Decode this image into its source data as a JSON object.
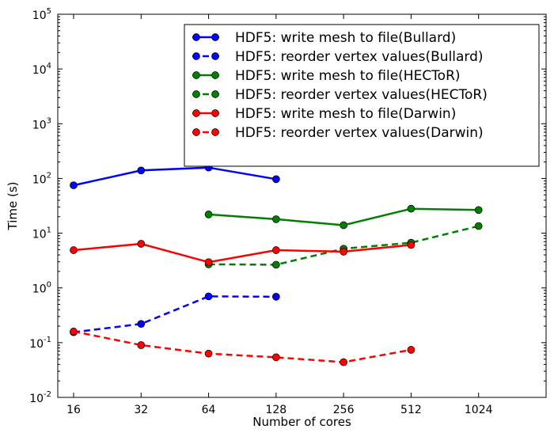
{
  "chart_data": {
    "type": "line",
    "xscale": "log2",
    "yscale": "log10",
    "xlabel": "Number of cores",
    "ylabel": "Time (s)",
    "xticks": [
      16,
      32,
      64,
      128,
      256,
      512,
      1024
    ],
    "xlim": [
      13.6,
      2048
    ],
    "yticks": [
      {
        "value": 0.01,
        "base": "10",
        "exp": "-2"
      },
      {
        "value": 0.1,
        "base": "10",
        "exp": "-1"
      },
      {
        "value": 1,
        "base": "10",
        "exp": "0"
      },
      {
        "value": 10,
        "base": "10",
        "exp": "1"
      },
      {
        "value": 100,
        "base": "10",
        "exp": "2"
      },
      {
        "value": 1000,
        "base": "10",
        "exp": "3"
      },
      {
        "value": 10000,
        "base": "10",
        "exp": "4"
      },
      {
        "value": 100000,
        "base": "10",
        "exp": "5"
      }
    ],
    "ylim": [
      0.01,
      100000
    ],
    "grid": false,
    "legend_position": "top-right",
    "series": [
      {
        "name": "HDF5: write mesh to file(Bullard)",
        "color": "#0000ff",
        "dashed": false,
        "points": [
          [
            16,
            75
          ],
          [
            32,
            140
          ],
          [
            64,
            158
          ],
          [
            128,
            97
          ]
        ]
      },
      {
        "name": "HDF5: reorder vertex values(Bullard)",
        "color": "#0000ff",
        "dashed": true,
        "points": [
          [
            16,
            0.155
          ],
          [
            32,
            0.22
          ],
          [
            64,
            0.7
          ],
          [
            128,
            0.69
          ]
        ]
      },
      {
        "name": "HDF5: write mesh to file(HECToR)",
        "color": "#008000",
        "dashed": false,
        "points": [
          [
            64,
            22
          ],
          [
            128,
            18
          ],
          [
            256,
            14
          ],
          [
            512,
            28
          ],
          [
            1024,
            26.5
          ]
        ]
      },
      {
        "name": "HDF5: reorder vertex values(HECToR)",
        "color": "#008000",
        "dashed": true,
        "points": [
          [
            64,
            2.7
          ],
          [
            128,
            2.65
          ],
          [
            256,
            5.2
          ],
          [
            512,
            6.7
          ],
          [
            1024,
            13.5
          ]
        ]
      },
      {
        "name": "HDF5: write mesh to file(Darwin)",
        "color": "#ff0000",
        "dashed": false,
        "points": [
          [
            16,
            4.9
          ],
          [
            32,
            6.4
          ],
          [
            64,
            2.95
          ],
          [
            128,
            4.9
          ],
          [
            256,
            4.6
          ],
          [
            512,
            6.1
          ]
        ]
      },
      {
        "name": "HDF5: reorder vertex values(Darwin)",
        "color": "#ff0000",
        "dashed": true,
        "points": [
          [
            16,
            0.16
          ],
          [
            32,
            0.09
          ],
          [
            64,
            0.063
          ],
          [
            128,
            0.054
          ],
          [
            256,
            0.044
          ],
          [
            512,
            0.074
          ]
        ]
      }
    ]
  }
}
